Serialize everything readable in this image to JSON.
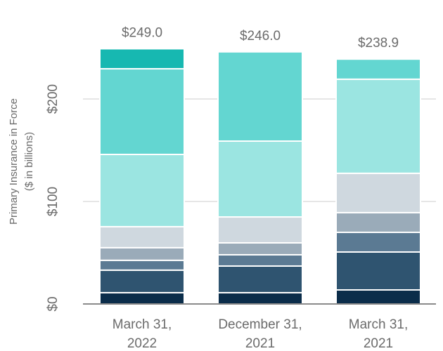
{
  "chart_data": {
    "type": "stacked-bar",
    "y_label": [
      "Primary Insurance in Force",
      "($ in billions)"
    ],
    "categories": [
      [
        "March 31,",
        "2022"
      ],
      [
        "December 31,",
        "2021"
      ],
      [
        "March 31,",
        "2021"
      ]
    ],
    "series": [
      {
        "color": "#0b2d4a",
        "values": [
          11.0,
          11.0,
          13.7
        ]
      },
      {
        "color": "#2f5470",
        "values": [
          22.0,
          26.0,
          37.0
        ]
      },
      {
        "color": "#5b7a93",
        "values": [
          9.6,
          11.0,
          19.2
        ]
      },
      {
        "color": "#9aabb9",
        "values": [
          12.3,
          11.6,
          19.2
        ]
      },
      {
        "color": "#cfd8df",
        "values": [
          20.5,
          25.3,
          38.4
        ]
      },
      {
        "color": "#9be5e1",
        "values": [
          70.5,
          74.0,
          91.8
        ]
      },
      {
        "color": "#63d6d1",
        "values": [
          83.6,
          87.1,
          19.6
        ]
      },
      {
        "color": "#17b8b1",
        "values": [
          19.5,
          null,
          null
        ]
      }
    ],
    "totals": {
      "values": [
        249.0,
        246.0,
        238.9
      ],
      "value_labels": [
        "$249.0",
        "$246.0",
        "$238.9"
      ]
    },
    "ylim": [
      0,
      250
    ],
    "yticks": [
      {
        "value": 0,
        "label": "$0"
      },
      {
        "value": 100,
        "label": "$100"
      },
      {
        "value": 200,
        "label": "$200"
      }
    ],
    "grid": true
  }
}
